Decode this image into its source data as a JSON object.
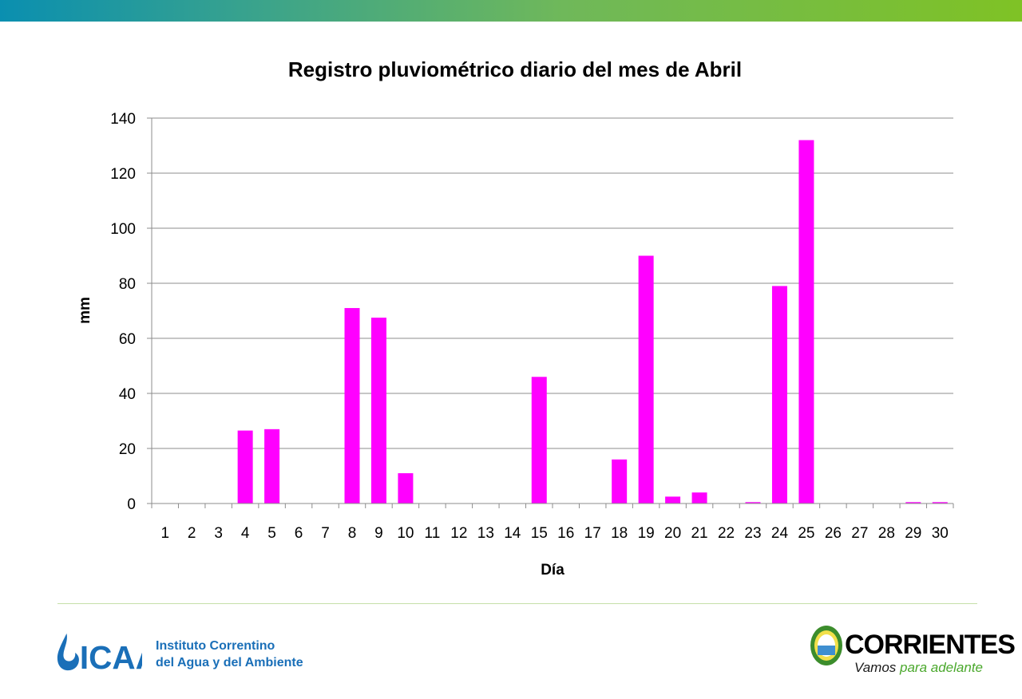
{
  "chart_data": {
    "type": "bar",
    "title": "Registro pluviométrico diario del mes de Abril",
    "xlabel": "Día",
    "ylabel": "mm",
    "ylim": [
      0,
      140
    ],
    "yticks": [
      0,
      20,
      40,
      60,
      80,
      100,
      120,
      140
    ],
    "grid": true,
    "legend": "none",
    "bar_color": "#ff00ff",
    "categories": [
      "1",
      "2",
      "3",
      "4",
      "5",
      "6",
      "7",
      "8",
      "9",
      "10",
      "11",
      "12",
      "13",
      "14",
      "15",
      "16",
      "17",
      "18",
      "19",
      "20",
      "21",
      "22",
      "23",
      "24",
      "25",
      "26",
      "27",
      "28",
      "29",
      "30"
    ],
    "values": [
      0,
      0,
      0,
      26.5,
      27,
      0,
      0,
      71,
      67.5,
      11,
      0,
      0,
      0,
      0,
      46,
      0,
      0,
      16,
      90,
      2.5,
      4,
      0,
      0.5,
      79,
      132,
      0,
      0,
      0,
      0.5,
      0.5
    ]
  },
  "footer": {
    "icaa_logo": "ICAA",
    "icaa_name_line1": "Instituto Correntino",
    "icaa_name_line2": "del Agua y del Ambiente",
    "corrientes_name": "CORRIENTES",
    "corrientes_tagline_1": "Vamos ",
    "corrientes_tagline_2": "para adelante",
    "colors": {
      "icaa_blue": "#1a6fb8",
      "corrientes_green": "#4aa82c"
    }
  }
}
